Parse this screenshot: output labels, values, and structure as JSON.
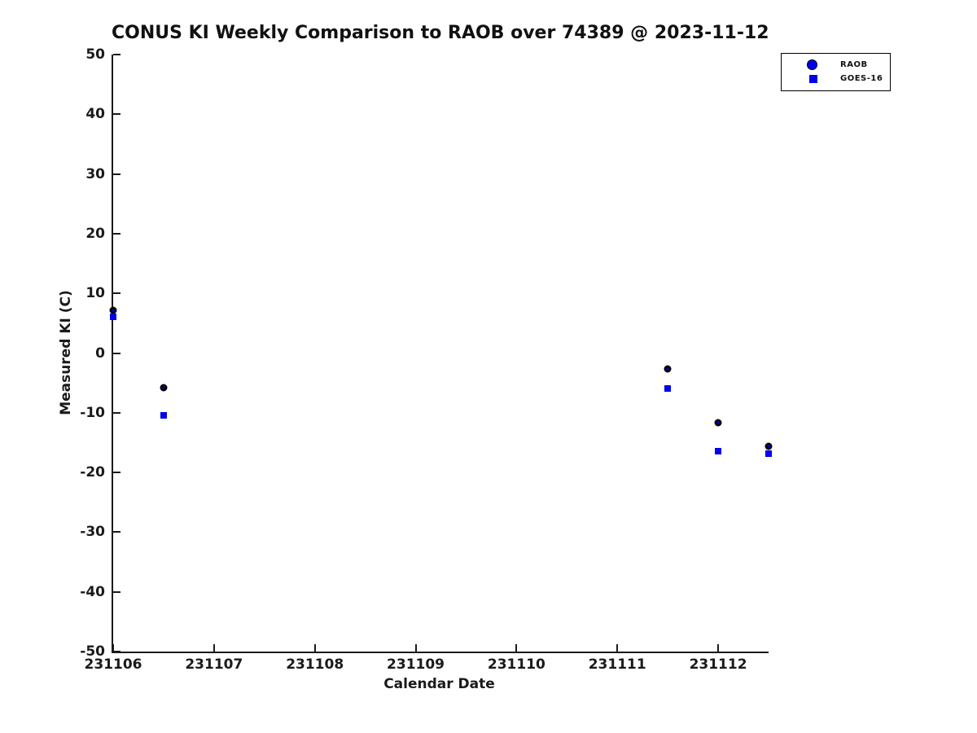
{
  "colors": {
    "series_blue": "#0000EE",
    "marker_edge_black": "#000000",
    "axis_text": "#1a1a1a"
  },
  "chart_data": {
    "type": "scatter",
    "title": "CONUS KI Weekly Comparison to RAOB over 74389 @ 2023-11-12",
    "xlabel": "Calendar Date",
    "ylabel": "Measured KI (C)",
    "xlim": [
      231106,
      231112.5
    ],
    "ylim": [
      -50,
      50
    ],
    "xticks": [
      231106,
      231107,
      231108,
      231109,
      231110,
      231111,
      231112
    ],
    "yticks": [
      50,
      40,
      30,
      20,
      10,
      0,
      -10,
      -20,
      -30,
      -40,
      -50
    ],
    "grid": false,
    "legend_position": "top-right-outside",
    "series": [
      {
        "name": "RAOB",
        "marker": "circle",
        "face_color": "#0000EE",
        "edge_color": "#000000",
        "x": [
          231106.0,
          231106.5,
          231111.5,
          231112.0,
          231112.5
        ],
        "y": [
          7.1,
          -5.8,
          -2.7,
          -11.7,
          -15.6
        ]
      },
      {
        "name": "GOES-16",
        "marker": "square",
        "face_color": "#0000EE",
        "edge_color": "#0000EE",
        "x": [
          231106.0,
          231106.5,
          231111.5,
          231112.0,
          231112.5
        ],
        "y": [
          6.1,
          -10.5,
          -6.0,
          -16.5,
          -16.9
        ]
      }
    ]
  }
}
